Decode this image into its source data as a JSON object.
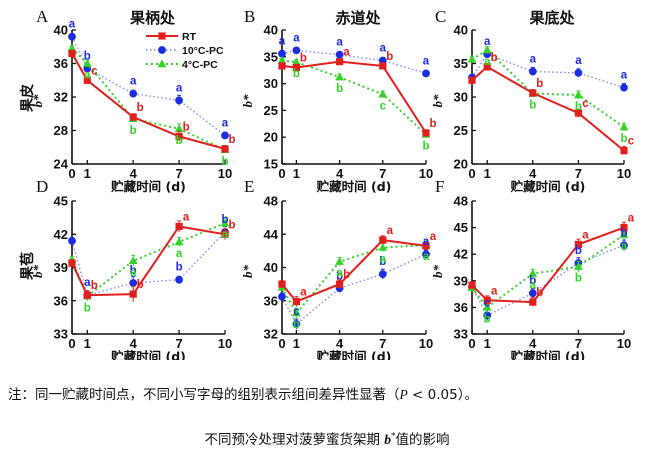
{
  "figure": {
    "col_titles": [
      "果柄处",
      "赤道处",
      "果底处"
    ],
    "row_titles": [
      "果皮",
      "果苞"
    ],
    "ylabel": "b*",
    "xlabel": "贮藏时间 (d)",
    "panel_letters": [
      "A",
      "B",
      "C",
      "D",
      "E",
      "F"
    ],
    "legend": {
      "rt": "RT",
      "c10": "10°C-PC",
      "c4": "4°C-PC"
    },
    "colors": {
      "rt": "#e1201e",
      "c10": "#1c2ce0",
      "c4": "#35d32a"
    }
  },
  "note": {
    "text": "注：同一贮藏时间点，不同小写字母的组别表示组间差异性显著（",
    "p_symbol": "P",
    "rest": " < 0.05）。"
  },
  "caption": {
    "before": "不同预冷处理对菠萝蜜货架期 ",
    "var": "b",
    "sup": "*",
    "after": "值的影响"
  },
  "chart_data": [
    {
      "type": "line",
      "panel": "A",
      "title": "果柄处",
      "ylabel": "b*",
      "xlabel": "贮藏时间 (d)",
      "x": [
        0,
        1,
        4,
        7,
        10
      ],
      "ylim": [
        24,
        40
      ],
      "yticks": [
        24,
        28,
        32,
        36,
        40
      ],
      "series": [
        {
          "name": "RT",
          "values": [
            37.2,
            34.0,
            29.6,
            27.3,
            25.8
          ],
          "errors": [
            0.3,
            0.4,
            0.4,
            0.6,
            0.4
          ],
          "letters": [
            "",
            "c",
            "b",
            "b",
            "b"
          ]
        },
        {
          "name": "10°C-PC",
          "values": [
            39.2,
            35.4,
            32.4,
            31.6,
            27.4
          ],
          "errors": [
            0.3,
            0.4,
            0.4,
            0.6,
            0.4
          ],
          "letters": [
            "a",
            "b",
            "a",
            "a",
            "a"
          ]
        },
        {
          "name": "4°C-PC",
          "values": [
            37.8,
            36.0,
            29.4,
            28.2,
            25.7
          ],
          "errors": [
            0.3,
            0.4,
            0.4,
            0.6,
            0.4
          ],
          "letters": [
            "",
            "a",
            "b",
            "b",
            "b"
          ]
        }
      ]
    },
    {
      "type": "line",
      "panel": "B",
      "title": "赤道处",
      "ylabel": "b*",
      "xlabel": "贮藏时间 (d)",
      "x": [
        0,
        1,
        4,
        7,
        10
      ],
      "ylim": [
        15,
        40
      ],
      "yticks": [
        15,
        20,
        25,
        30,
        35,
        40
      ],
      "series": [
        {
          "name": "RT",
          "values": [
            33.3,
            33.0,
            34.1,
            33.3,
            20.8
          ],
          "errors": [
            0.4,
            0.5,
            0.5,
            0.5,
            0.5
          ],
          "letters": [
            "",
            "b",
            "a",
            "b",
            "b"
          ]
        },
        {
          "name": "10°C-PC",
          "values": [
            35.6,
            36.2,
            35.4,
            34.3,
            31.9
          ],
          "errors": [
            0.4,
            0.5,
            0.5,
            0.5,
            0.5
          ],
          "letters": [
            "a",
            "a",
            "a",
            "a",
            "a"
          ]
        },
        {
          "name": "4°C-PC",
          "values": [
            34.3,
            34.0,
            31.2,
            28.0,
            20.5
          ],
          "errors": [
            0.4,
            0.5,
            0.6,
            0.6,
            0.5
          ],
          "letters": [
            "",
            "b",
            "b",
            "c",
            "b"
          ]
        }
      ]
    },
    {
      "type": "line",
      "panel": "C",
      "title": "果底处",
      "ylabel": "b*",
      "xlabel": "贮藏时间 (d)",
      "x": [
        0,
        1,
        4,
        7,
        10
      ],
      "ylim": [
        20,
        40
      ],
      "yticks": [
        20,
        25,
        30,
        35,
        40
      ],
      "series": [
        {
          "name": "RT",
          "values": [
            32.5,
            34.5,
            30.6,
            27.6,
            22.0
          ],
          "errors": [
            0.4,
            0.5,
            0.5,
            0.6,
            0.6
          ],
          "letters": [
            "",
            "b",
            "b",
            "c",
            "c"
          ]
        },
        {
          "name": "10°C-PC",
          "values": [
            32.9,
            36.4,
            33.8,
            33.6,
            31.4
          ],
          "errors": [
            0.4,
            0.5,
            0.6,
            0.6,
            0.6
          ],
          "letters": [
            "",
            "a",
            "a",
            "a",
            "a"
          ]
        },
        {
          "name": "4°C-PC",
          "values": [
            35.6,
            37.0,
            30.5,
            30.3,
            25.5
          ],
          "errors": [
            0.4,
            0.5,
            0.5,
            0.6,
            0.6
          ],
          "letters": [
            "",
            "a",
            "b",
            "b",
            "b"
          ]
        }
      ]
    },
    {
      "type": "line",
      "panel": "D",
      "title": "",
      "ylabel": "b*",
      "xlabel": "贮藏时间 (d)",
      "x": [
        0,
        1,
        4,
        7,
        10
      ],
      "ylim": [
        33,
        45
      ],
      "yticks": [
        33,
        36,
        39,
        42,
        45
      ],
      "series": [
        {
          "name": "RT",
          "values": [
            39.4,
            36.5,
            36.6,
            42.7,
            42.0
          ],
          "errors": [
            0.3,
            0.4,
            0.7,
            0.5,
            0.5
          ],
          "letters": [
            "",
            "b",
            "b",
            "a",
            "b"
          ]
        },
        {
          "name": "10°C-PC",
          "values": [
            41.4,
            36.5,
            37.6,
            37.9,
            42.2
          ],
          "errors": [
            0.3,
            0.4,
            0.6,
            0.3,
            0.5
          ],
          "letters": [
            "",
            "a",
            "b",
            "b",
            "b"
          ]
        },
        {
          "name": "4°C-PC",
          "values": [
            39.7,
            36.4,
            39.6,
            41.3,
            43.0
          ],
          "errors": [
            0.3,
            0.4,
            0.5,
            0.4,
            0.5
          ],
          "letters": [
            "",
            "b",
            "a",
            "a",
            "a"
          ]
        }
      ]
    },
    {
      "type": "line",
      "panel": "E",
      "title": "",
      "ylabel": "b*",
      "xlabel": "贮藏时间 (d)",
      "x": [
        0,
        1,
        4,
        7,
        10
      ],
      "ylim": [
        32,
        48
      ],
      "yticks": [
        32,
        36,
        40,
        44,
        48
      ],
      "series": [
        {
          "name": "RT",
          "values": [
            38.0,
            35.9,
            38.0,
            43.3,
            42.6
          ],
          "errors": [
            0.4,
            0.6,
            0.5,
            0.5,
            0.5
          ],
          "letters": [
            "",
            "a",
            "b",
            "a",
            "a"
          ]
        },
        {
          "name": "10°C-PC",
          "values": [
            36.5,
            33.2,
            37.5,
            39.2,
            41.6
          ],
          "errors": [
            0.4,
            0.6,
            0.5,
            0.6,
            0.5
          ],
          "letters": [
            "",
            "c",
            "b",
            "b",
            "a"
          ]
        },
        {
          "name": "4°C-PC",
          "values": [
            37.6,
            34.5,
            40.7,
            42.4,
            42.7
          ],
          "errors": [
            0.4,
            0.6,
            0.5,
            0.5,
            0.5
          ],
          "letters": [
            "",
            "b",
            "a",
            "a",
            "a"
          ]
        }
      ]
    },
    {
      "type": "line",
      "panel": "F",
      "title": "",
      "ylabel": "b*",
      "xlabel": "贮藏时间 (d)",
      "x": [
        0,
        1,
        4,
        7,
        10
      ],
      "ylim": [
        33,
        48
      ],
      "yticks": [
        33,
        36,
        39,
        42,
        45,
        48
      ],
      "series": [
        {
          "name": "RT",
          "values": [
            38.5,
            36.8,
            36.6,
            43.1,
            45.0
          ],
          "errors": [
            0.4,
            0.5,
            0.5,
            0.6,
            0.6
          ],
          "letters": [
            "",
            "a",
            "b",
            "a",
            "a"
          ]
        },
        {
          "name": "10°C-PC",
          "values": [
            38.3,
            35.1,
            37.6,
            41.0,
            43.0
          ],
          "errors": [
            0.4,
            0.6,
            0.5,
            0.6,
            0.6
          ],
          "letters": [
            "",
            "c",
            "b",
            "b",
            "b"
          ]
        },
        {
          "name": "4°C-PC",
          "values": [
            38.2,
            36.0,
            39.8,
            40.6,
            44.2
          ],
          "errors": [
            0.4,
            0.6,
            0.5,
            0.6,
            0.6
          ],
          "letters": [
            "",
            "b",
            "a",
            "b",
            "a"
          ]
        }
      ]
    }
  ]
}
